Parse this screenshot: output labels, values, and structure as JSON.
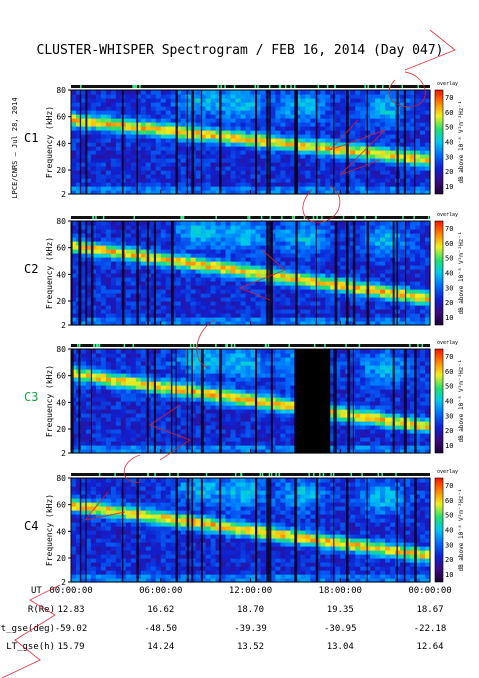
{
  "title": "CLUSTER-WHISPER Spectrogram / FEB 16, 2014 (Day 047)",
  "side_label": "LPCE/CNRS – Jul 28, 2014",
  "chart_data": {
    "type": "heatmap",
    "xlabel": "UT",
    "x_ticks": [
      "00:00:00",
      "06:00:00",
      "12:00:00",
      "18:00:00",
      "00:00:00"
    ],
    "xlim_hours": [
      0,
      24
    ],
    "ylabel": "Frequency (kHz)",
    "y_ticks": [
      2,
      20,
      40,
      60,
      80
    ],
    "ylim": [
      2,
      80
    ],
    "colorbar_label": "dB above 10⁻⁸ V²m⁻²Hz⁻¹",
    "colorbar_title": "overlay",
    "colorbar_ticks": [
      10,
      20,
      30,
      40,
      50,
      60,
      70
    ],
    "colorbar_range": [
      5,
      75
    ],
    "colormap": [
      "#1a0033",
      "#3a0a80",
      "#1020d0",
      "#0070ff",
      "#00c8f0",
      "#20e070",
      "#f0f020",
      "#ff8000",
      "#ff1000"
    ],
    "panels": [
      {
        "name": "C1",
        "label_color": "#000000",
        "trend_start_khz": 58,
        "trend_end_khz": 28,
        "blank_interval_hours": null
      },
      {
        "name": "C2",
        "label_color": "#000000",
        "trend_start_khz": 62,
        "trend_end_khz": 22,
        "blank_interval_hours": null
      },
      {
        "name": "C3",
        "label_color": "#17a34a",
        "trend_start_khz": 62,
        "trend_end_khz": 22,
        "blank_interval_hours": [
          14.9,
          17.3
        ]
      },
      {
        "name": "C4",
        "label_color": "#000000",
        "trend_start_khz": 60,
        "trend_end_khz": 22,
        "blank_interval_hours": null
      }
    ],
    "ephemeris": [
      {
        "label": "R(Re)",
        "values": [
          "12.83",
          "16.62",
          "18.70",
          "19.35",
          "18.67"
        ]
      },
      {
        "label": "Lat_gse(deg)",
        "values": [
          "-59.02",
          "-48.50",
          "-39.39",
          "-30.95",
          "-22.18"
        ]
      },
      {
        "label": "LT_gse(h)",
        "values": [
          "15.79",
          "14.24",
          "13.52",
          "13.04",
          "12.64"
        ]
      }
    ]
  },
  "annotation_color": "#e11d2a"
}
